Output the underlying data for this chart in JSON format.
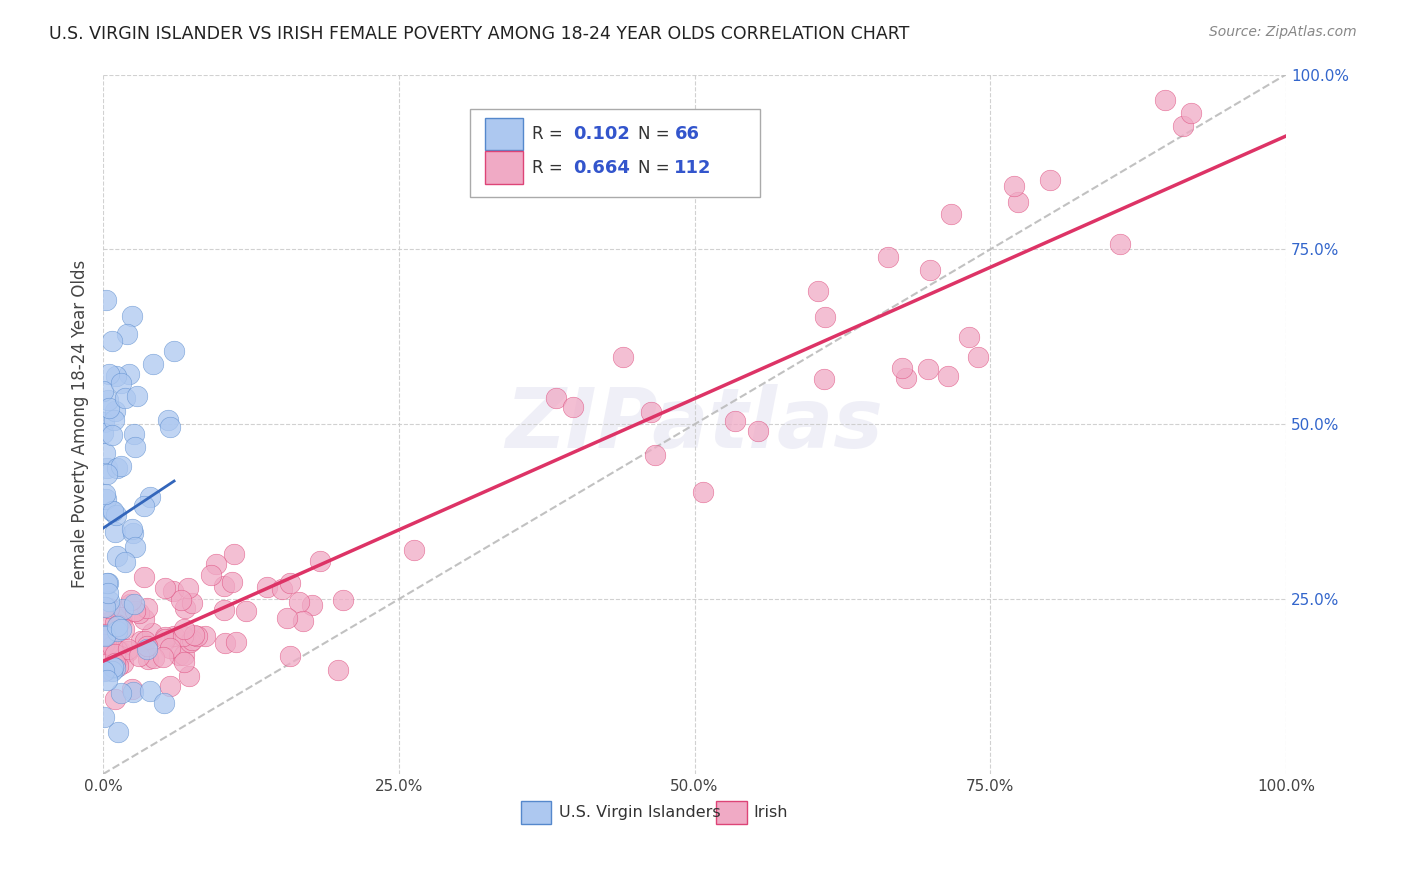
{
  "title": "U.S. VIRGIN ISLANDER VS IRISH FEMALE POVERTY AMONG 18-24 YEAR OLDS CORRELATION CHART",
  "source": "Source: ZipAtlas.com",
  "ylabel": "Female Poverty Among 18-24 Year Olds",
  "xlim": [
    0.0,
    1.0
  ],
  "ylim": [
    0.0,
    1.0
  ],
  "xticks": [
    0.0,
    0.25,
    0.5,
    0.75,
    1.0
  ],
  "xticklabels": [
    "0.0%",
    "25.0%",
    "50.0%",
    "75.0%",
    "100.0%"
  ],
  "yticks": [
    0.25,
    0.5,
    0.75,
    1.0
  ],
  "yticklabels": [
    "25.0%",
    "50.0%",
    "75.0%",
    "100.0%"
  ],
  "vi_color": "#adc8f0",
  "irish_color": "#f0aac5",
  "vi_edge_color": "#5588cc",
  "irish_edge_color": "#dd4477",
  "vi_line_color": "#3366bb",
  "irish_line_color": "#dd3366",
  "vi_R": 0.102,
  "vi_N": 66,
  "irish_R": 0.664,
  "irish_N": 112,
  "watermark_text": "ZIPatlas",
  "background_color": "#ffffff",
  "grid_color": "#cccccc",
  "title_color": "#222222",
  "source_color": "#888888",
  "tick_label_color_x": "#444444",
  "tick_label_color_y": "#3366cc",
  "ylabel_color": "#444444",
  "legend_label_color": "#333333",
  "legend_value_color": "#3355cc"
}
